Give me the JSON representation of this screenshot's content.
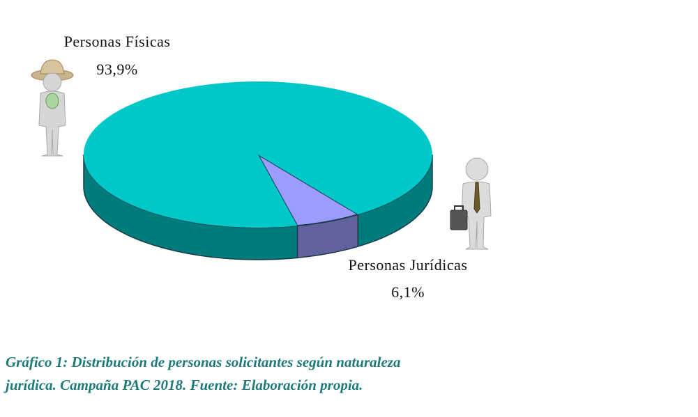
{
  "chart_data": {
    "type": "pie",
    "categories": [
      "Personas Físicas",
      "Personas Jurídicas"
    ],
    "values": [
      93.9,
      6.1
    ],
    "value_labels": [
      "93,9%",
      "6,1%"
    ],
    "colors": [
      "#00c8c8",
      "#9c9cff"
    ],
    "caption": [
      "Gráfico 1: Distribución de personas solicitantes según naturaleza",
      "jurídica. Campaña PAC 2018.  Fuente: Elaboración propia."
    ]
  }
}
